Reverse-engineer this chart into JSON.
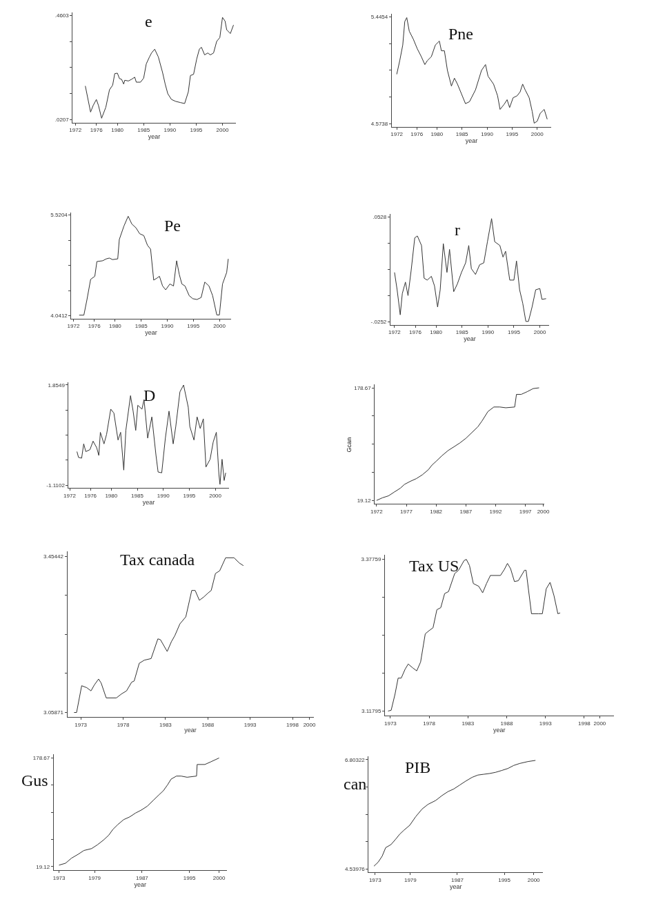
{
  "chart_data": [
    {
      "type": "line",
      "title": "e",
      "xlabel": "year",
      "xlim": [
        1971.5,
        2002.5
      ],
      "ylim": [
        0.008,
        0.473
      ],
      "xticks": [
        1972,
        1976,
        1980,
        1985,
        1990,
        1995,
        2000
      ],
      "yticks": [
        {
          "value": 0.0207,
          "label": ".0207"
        },
        {
          "value": 0.1306,
          "label": null
        },
        {
          "value": 0.2405,
          "label": null
        },
        {
          "value": 0.3504,
          "label": null
        },
        {
          "value": 0.4603,
          "label": ".4603"
        }
      ],
      "series": [
        {
          "color": "#333333",
          "x": [
            1973.9,
            1974.9,
            1975.4,
            1976.0,
            1976.4,
            1977.0,
            1977.8,
            1978.5,
            1979.1,
            1979.5,
            1980.0,
            1980.4,
            1980.8,
            1981.2,
            1981.4,
            1982.1,
            1982.7,
            1983.3,
            1983.6,
            1984.4,
            1985.0,
            1985.5,
            1986.1,
            1986.5,
            1987.1,
            1987.8,
            1988.6,
            1989.1,
            1989.6,
            1990.3,
            1991.1,
            1992.0,
            1992.8,
            1993.5,
            1993.9,
            1994.5,
            1995.1,
            1995.6,
            1996.0,
            1996.6,
            1997.2,
            1997.7,
            1998.3,
            1998.9,
            1999.5,
            2000.0,
            2000.5,
            2000.8,
            2001.5,
            2002.1
          ],
          "values": [
            0.163,
            0.053,
            0.081,
            0.106,
            0.081,
            0.027,
            0.073,
            0.147,
            0.166,
            0.215,
            0.217,
            0.194,
            0.191,
            0.171,
            0.187,
            0.184,
            0.191,
            0.2,
            0.179,
            0.179,
            0.196,
            0.256,
            0.285,
            0.302,
            0.318,
            0.285,
            0.22,
            0.171,
            0.13,
            0.106,
            0.098,
            0.093,
            0.089,
            0.138,
            0.207,
            0.212,
            0.277,
            0.318,
            0.326,
            0.294,
            0.302,
            0.294,
            0.302,
            0.351,
            0.367,
            0.452,
            0.436,
            0.4,
            0.384,
            0.42
          ]
        }
      ]
    },
    {
      "type": "line",
      "title": "Pne",
      "xlabel": "year",
      "xlim": [
        1971.0,
        2002.8
      ],
      "ylim": [
        4.55,
        5.47
      ],
      "xticks": [
        1972,
        1976,
        1980,
        1985,
        1990,
        1995,
        2000
      ],
      "yticks": [
        {
          "value": 4.5738,
          "label": "4.5738"
        },
        {
          "value": 4.7917,
          "label": null
        },
        {
          "value": 5.0096,
          "label": null
        },
        {
          "value": 5.2275,
          "label": null
        },
        {
          "value": 5.4454,
          "label": "5.4454"
        }
      ],
      "series": [
        {
          "color": "#333333",
          "x": [
            1972.0,
            1972.6,
            1973.2,
            1973.6,
            1974.0,
            1974.5,
            1975.3,
            1976.1,
            1976.9,
            1977.6,
            1978.1,
            1978.9,
            1979.7,
            1980.5,
            1980.9,
            1981.5,
            1982.1,
            1982.9,
            1983.5,
            1984.1,
            1984.9,
            1985.7,
            1986.5,
            1987.7,
            1988.9,
            1989.7,
            1990.2,
            1991.3,
            1992.1,
            1992.6,
            1993.4,
            1994.0,
            1994.5,
            1995.2,
            1996.0,
            1996.6,
            1997.1,
            1997.6,
            1998.4,
            1999.0,
            1999.4,
            2000.0,
            2000.6,
            2001.4,
            2002.0
          ],
          "values": [
            4.978,
            5.089,
            5.216,
            5.407,
            5.439,
            5.328,
            5.264,
            5.185,
            5.121,
            5.057,
            5.089,
            5.121,
            5.216,
            5.248,
            5.169,
            5.169,
            5.01,
            4.882,
            4.946,
            4.898,
            4.819,
            4.739,
            4.755,
            4.851,
            5.01,
            5.057,
            4.962,
            4.898,
            4.803,
            4.692,
            4.733,
            4.771,
            4.707,
            4.787,
            4.803,
            4.835,
            4.898,
            4.851,
            4.787,
            4.676,
            4.58,
            4.596,
            4.66,
            4.692,
            4.612
          ]
        }
      ]
    },
    {
      "type": "line",
      "title": "Pe",
      "xlabel": "year",
      "xlim": [
        1971.6,
        2002.2
      ],
      "ylim": [
        4.0,
        5.56
      ],
      "xticks": [
        1972,
        1976,
        1980,
        1985,
        1990,
        1995,
        2000
      ],
      "yticks": [
        {
          "value": 4.0412,
          "label": "4.0412"
        },
        {
          "value": 4.411,
          "label": null
        },
        {
          "value": 4.7808,
          "label": null
        },
        {
          "value": 5.1506,
          "label": null
        },
        {
          "value": 5.5204,
          "label": "5.5204"
        }
      ],
      "series": [
        {
          "color": "#333333",
          "x": [
            1973.1,
            1974.0,
            1974.6,
            1975.3,
            1976.1,
            1976.5,
            1977.6,
            1978.3,
            1978.9,
            1979.5,
            1980.5,
            1980.8,
            1981.7,
            1982.5,
            1983.2,
            1984.0,
            1984.7,
            1985.5,
            1986.2,
            1986.8,
            1987.4,
            1988.0,
            1988.5,
            1989.1,
            1989.7,
            1990.5,
            1991.2,
            1991.8,
            1992.3,
            1992.8,
            1993.4,
            1994.2,
            1994.9,
            1995.7,
            1996.5,
            1997.2,
            1998.0,
            1998.7,
            1999.5,
            2000.0,
            2000.6,
            2001.4,
            2001.7
          ],
          "values": [
            4.05,
            4.05,
            4.28,
            4.576,
            4.621,
            4.838,
            4.849,
            4.877,
            4.889,
            4.866,
            4.877,
            5.162,
            5.361,
            5.503,
            5.389,
            5.333,
            5.247,
            5.219,
            5.077,
            5.02,
            4.565,
            4.593,
            4.621,
            4.479,
            4.422,
            4.508,
            4.479,
            4.849,
            4.65,
            4.508,
            4.479,
            4.337,
            4.292,
            4.28,
            4.309,
            4.536,
            4.479,
            4.337,
            4.053,
            4.053,
            4.508,
            4.678,
            4.877
          ]
        }
      ]
    },
    {
      "type": "line",
      "title": "r",
      "xlabel": "year",
      "xlim": [
        1971.2,
        2001.8
      ],
      "ylim": [
        -0.0275,
        0.055
      ],
      "xticks": [
        1972,
        1976,
        1980,
        1985,
        1990,
        1995,
        2000
      ],
      "yticks": [
        {
          "value": -0.0252,
          "label": "-.0252"
        },
        {
          "value": -0.0057,
          "label": null
        },
        {
          "value": 0.0138,
          "label": null
        },
        {
          "value": 0.0333,
          "label": null
        },
        {
          "value": 0.0528,
          "label": ".0528"
        }
      ],
      "series": [
        {
          "color": "#333333",
          "x": [
            1972.0,
            1972.5,
            1973.1,
            1973.5,
            1974.1,
            1974.6,
            1975.2,
            1975.9,
            1976.4,
            1977.2,
            1977.7,
            1978.3,
            1979.1,
            1979.7,
            1980.3,
            1980.8,
            1981.4,
            1982.1,
            1982.6,
            1983.4,
            1984.1,
            1984.9,
            1985.7,
            1986.3,
            1986.8,
            1987.6,
            1988.4,
            1989.2,
            1989.9,
            1990.7,
            1991.3,
            1992.3,
            1992.9,
            1993.4,
            1994.2,
            1995.0,
            1995.5,
            1996.1,
            1996.7,
            1997.3,
            1997.8,
            1998.5,
            1999.2,
            2000.0,
            2000.4,
            2001.2
          ],
          "values": [
            0.0114,
            -0.0015,
            -0.0201,
            -0.0043,
            0.0042,
            -0.0058,
            0.0128,
            0.0371,
            0.0385,
            0.0314,
            0.0071,
            0.0057,
            0.0085,
            0.0014,
            -0.0143,
            -0.0015,
            0.0328,
            0.0114,
            0.0285,
            -0.0029,
            0.0028,
            0.0114,
            0.0185,
            0.0314,
            0.0142,
            0.0099,
            0.0171,
            0.0185,
            0.0342,
            0.0514,
            0.0342,
            0.0314,
            0.0228,
            0.0271,
            0.0057,
            0.0057,
            0.0199,
            -0.0015,
            -0.0115,
            -0.025,
            -0.025,
            -0.0143,
            -0.0015,
            -0.0006,
            -0.0086,
            -0.0081
          ]
        }
      ]
    },
    {
      "type": "line",
      "title": "D",
      "xlabel": "year",
      "xlim": [
        1971.8,
        2002.6
      ],
      "ylim": [
        -1.2,
        1.94
      ],
      "xticks": [
        1972,
        1976,
        1980,
        1985,
        1990,
        1995,
        2000
      ],
      "yticks": [
        {
          "value": -1.1102,
          "label": "-1.1102"
        },
        {
          "value": -0.3689,
          "label": null
        },
        {
          "value": 0.3724,
          "label": null
        },
        {
          "value": 1.1136,
          "label": null
        },
        {
          "value": 1.8549,
          "label": "1.8549"
        }
      ],
      "series": [
        {
          "color": "#333333",
          "x": [
            1973.4,
            1973.7,
            1974.3,
            1974.7,
            1975.1,
            1975.9,
            1976.5,
            1977.2,
            1977.6,
            1977.9,
            1978.6,
            1979.1,
            1979.9,
            1980.5,
            1981.3,
            1981.8,
            1982.4,
            1982.8,
            1983.7,
            1984.2,
            1984.7,
            1985.1,
            1985.9,
            1986.3,
            1987.0,
            1987.8,
            1988.6,
            1989.0,
            1989.7,
            1990.4,
            1991.1,
            1991.9,
            1992.4,
            1993.2,
            1993.9,
            1994.8,
            1995.1,
            1995.9,
            1996.5,
            1997.1,
            1997.7,
            1998.2,
            1999.0,
            1999.6,
            2000.2,
            2000.7,
            2000.9,
            2001.3,
            2001.7,
            2002.0
          ],
          "values": [
            -0.118,
            -0.289,
            -0.312,
            0.11,
            -0.118,
            -0.061,
            0.19,
            -0.004,
            -0.232,
            0.452,
            0.11,
            0.395,
            1.137,
            1.022,
            0.224,
            0.452,
            -0.665,
            0.509,
            1.536,
            1.079,
            0.509,
            1.251,
            1.137,
            1.421,
            0.281,
            0.908,
            -0.232,
            -0.722,
            -0.745,
            0.281,
            1.079,
            0.11,
            0.623,
            1.65,
            1.85,
            1.194,
            0.623,
            0.224,
            0.908,
            0.566,
            0.851,
            -0.574,
            -0.346,
            0.167,
            0.452,
            -0.802,
            -1.087,
            -0.346,
            -0.973,
            -0.745
          ]
        }
      ]
    },
    {
      "type": "line",
      "ylabel": "Gcan",
      "xlim": [
        1971.7,
        2000.2
      ],
      "ylim": [
        14,
        184
      ],
      "xticks": [
        1972,
        1977,
        1982,
        1987,
        1992,
        1997,
        2000
      ],
      "yticks": [
        {
          "value": 19.12,
          "label": "19.12"
        },
        {
          "value": 59.01,
          "label": null
        },
        {
          "value": 98.9,
          "label": null
        },
        {
          "value": 138.78,
          "label": null
        },
        {
          "value": 178.67,
          "label": "178.67"
        }
      ],
      "series": [
        {
          "color": "#333333",
          "x": [
            1972.0,
            1973.0,
            1974.0,
            1975.0,
            1976.0,
            1976.7,
            1977.7,
            1978.7,
            1979.7,
            1980.7,
            1981.3,
            1982.0,
            1983.0,
            1984.0,
            1985.0,
            1986.0,
            1987.0,
            1988.0,
            1989.0,
            1989.7,
            1990.7,
            1991.7,
            1992.7,
            1993.7,
            1995.2,
            1995.5,
            1996.3,
            1997.3,
            1998.3,
            1999.3
          ],
          "values": [
            19.12,
            22.9,
            25.6,
            31.1,
            36.5,
            41.9,
            46.3,
            50.1,
            55.5,
            62.6,
            69.1,
            74.5,
            82.6,
            89.7,
            95.1,
            100.6,
            107.1,
            115.2,
            123.3,
            131.5,
            145.0,
            151.5,
            151.5,
            150.4,
            151.5,
            169.4,
            169.4,
            173.2,
            177.6,
            178.67
          ]
        }
      ]
    },
    {
      "type": "line",
      "title": "Tax canada",
      "xlabel": "year",
      "xlim": [
        1971.4,
        2000.5
      ],
      "ylim": [
        3.047,
        3.466
      ],
      "xticks": [
        1973,
        1978,
        1983,
        1988,
        1993,
        1998,
        2000
      ],
      "yticks": [
        {
          "value": 3.05871,
          "label": "3.05871"
        },
        {
          "value": 3.1576,
          "label": null
        },
        {
          "value": 3.2566,
          "label": null
        },
        {
          "value": 3.3555,
          "label": null
        },
        {
          "value": 3.45442,
          "label": "3.45442"
        }
      ],
      "series": [
        {
          "color": "#333333",
          "x": [
            1972.2,
            1972.5,
            1973.1,
            1973.7,
            1974.2,
            1974.6,
            1975.1,
            1975.4,
            1976.0,
            1977.2,
            1977.8,
            1978.4,
            1979.0,
            1979.3,
            1979.9,
            1980.5,
            1981.3,
            1982.1,
            1982.4,
            1983.2,
            1983.7,
            1984.1,
            1984.7,
            1985.4,
            1986.1,
            1986.5,
            1987.0,
            1987.5,
            1988.0,
            1988.4,
            1988.9,
            1989.4,
            1990.1,
            1991.1,
            1991.7,
            1992.2
          ],
          "values": [
            3.0587,
            3.0587,
            3.1265,
            3.1215,
            3.1135,
            3.1285,
            3.1434,
            3.1334,
            3.0956,
            3.0956,
            3.1056,
            3.1135,
            3.1354,
            3.1384,
            3.1833,
            3.1912,
            3.1952,
            3.2451,
            3.2431,
            3.2132,
            3.2381,
            3.2531,
            3.283,
            3.3009,
            3.3677,
            3.3677,
            3.3428,
            3.3507,
            3.3607,
            3.3677,
            3.4106,
            3.4175,
            3.4504,
            3.4504,
            3.4375,
            3.4305
          ]
        }
      ]
    },
    {
      "type": "line",
      "title": "Tax US",
      "xlabel": "year",
      "xlim": [
        1972.3,
        2001.8
      ],
      "ylim": [
        3.11,
        3.385
      ],
      "xticks": [
        1973,
        1978,
        1983,
        1988,
        1993,
        1998,
        2000
      ],
      "yticks": [
        {
          "value": 3.11795,
          "label": "3.11795"
        },
        {
          "value": 3.1829,
          "label": null
        },
        {
          "value": 3.2478,
          "label": null
        },
        {
          "value": 3.3127,
          "label": null
        },
        {
          "value": 3.37759,
          "label": "3.37759"
        }
      ],
      "series": [
        {
          "color": "#333333",
          "x": [
            1972.7,
            1973.1,
            1973.6,
            1974.0,
            1974.4,
            1974.9,
            1975.3,
            1975.9,
            1976.4,
            1976.9,
            1977.5,
            1978.0,
            1978.5,
            1979.0,
            1979.5,
            1980.0,
            1980.5,
            1981.3,
            1981.8,
            1982.5,
            1982.8,
            1983.2,
            1983.7,
            1984.4,
            1984.9,
            1985.4,
            1985.9,
            1986.8,
            1987.2,
            1987.7,
            1988.1,
            1988.5,
            1989.0,
            1989.5,
            1990.3,
            1990.5,
            1991.2,
            1992.1,
            1992.6,
            1993.1,
            1993.6,
            1994.1,
            1994.6,
            1994.9
          ],
          "values": [
            3.118,
            3.1193,
            3.1469,
            3.1744,
            3.1744,
            3.1896,
            3.1985,
            3.1917,
            3.1868,
            3.202,
            3.2502,
            3.2557,
            3.2605,
            3.2915,
            3.295,
            3.3191,
            3.3225,
            3.3535,
            3.359,
            3.3755,
            3.3776,
            3.3673,
            3.3363,
            3.3315,
            3.3204,
            3.3363,
            3.3501,
            3.3501,
            3.3501,
            3.3604,
            3.3707,
            3.3618,
            3.3397,
            3.3411,
            3.359,
            3.359,
            3.2846,
            3.2846,
            3.2846,
            3.3273,
            3.3383,
            3.3156,
            3.2846,
            3.286
          ]
        }
      ]
    },
    {
      "type": "line",
      "ylabel": "Gus",
      "xlabel": "year",
      "xlim": [
        1972.1,
        2001.3
      ],
      "ylim": [
        14,
        184
      ],
      "xticks": [
        1973,
        1979,
        1987,
        1995,
        2000
      ],
      "yticks": [
        {
          "value": 19.12,
          "label": "19.12"
        },
        {
          "value": 59.01,
          "label": null
        },
        {
          "value": 98.9,
          "label": null
        },
        {
          "value": 138.78,
          "label": null
        },
        {
          "value": 178.67,
          "label": "178.67"
        }
      ],
      "series": [
        {
          "color": "#333333",
          "x": [
            1973.0,
            1974.1,
            1975.1,
            1976.2,
            1977.2,
            1978.5,
            1979.5,
            1980.5,
            1981.4,
            1982.1,
            1982.9,
            1983.9,
            1984.9,
            1985.9,
            1986.9,
            1987.9,
            1988.9,
            1989.9,
            1990.6,
            1991.3,
            1991.9,
            1992.8,
            1993.6,
            1994.6,
            1996.2,
            1996.3,
            1997.6,
            1998.6,
            2000.0
          ],
          "values": [
            21.4,
            24.2,
            31.6,
            37.2,
            42.9,
            45.7,
            51.4,
            58.2,
            65.5,
            74.0,
            80.8,
            88.2,
            92.1,
            97.8,
            102.3,
            108.0,
            116.5,
            124.9,
            130.6,
            139.1,
            147.6,
            152.1,
            152.1,
            150.4,
            152.1,
            169.1,
            169.1,
            173.0,
            178.67
          ]
        }
      ]
    },
    {
      "type": "line",
      "title": "PIB",
      "ylabel": "can",
      "xlabel": "year",
      "xlim": [
        1971.9,
        2001.6
      ],
      "ylim": [
        4.47,
        6.87
      ],
      "xticks": [
        1973,
        1979,
        1987,
        1995,
        2000
      ],
      "yticks": [
        {
          "value": 4.53976,
          "label": "4.53976"
        },
        {
          "value": 5.1056,
          "label": null
        },
        {
          "value": 5.6715,
          "label": null
        },
        {
          "value": 6.2374,
          "label": null
        },
        {
          "value": 6.80322,
          "label": "6.80322"
        }
      ],
      "series": [
        {
          "color": "#333333",
          "x": [
            1972.8,
            1973.5,
            1974.2,
            1974.8,
            1975.7,
            1976.5,
            1977.2,
            1977.9,
            1978.9,
            1979.9,
            1981.0,
            1982.0,
            1983.3,
            1984.4,
            1985.4,
            1986.4,
            1987.4,
            1988.4,
            1989.5,
            1990.5,
            1991.5,
            1992.5,
            1993.5,
            1994.6,
            1995.6,
            1996.6,
            1997.6,
            1999.0,
            2000.3
          ],
          "values": [
            4.596,
            4.676,
            4.803,
            4.98,
            5.043,
            5.155,
            5.26,
            5.34,
            5.444,
            5.62,
            5.78,
            5.876,
            5.956,
            6.06,
            6.14,
            6.196,
            6.276,
            6.356,
            6.436,
            6.484,
            6.5,
            6.516,
            6.54,
            6.58,
            6.62,
            6.683,
            6.723,
            6.763,
            6.787
          ]
        }
      ]
    }
  ]
}
